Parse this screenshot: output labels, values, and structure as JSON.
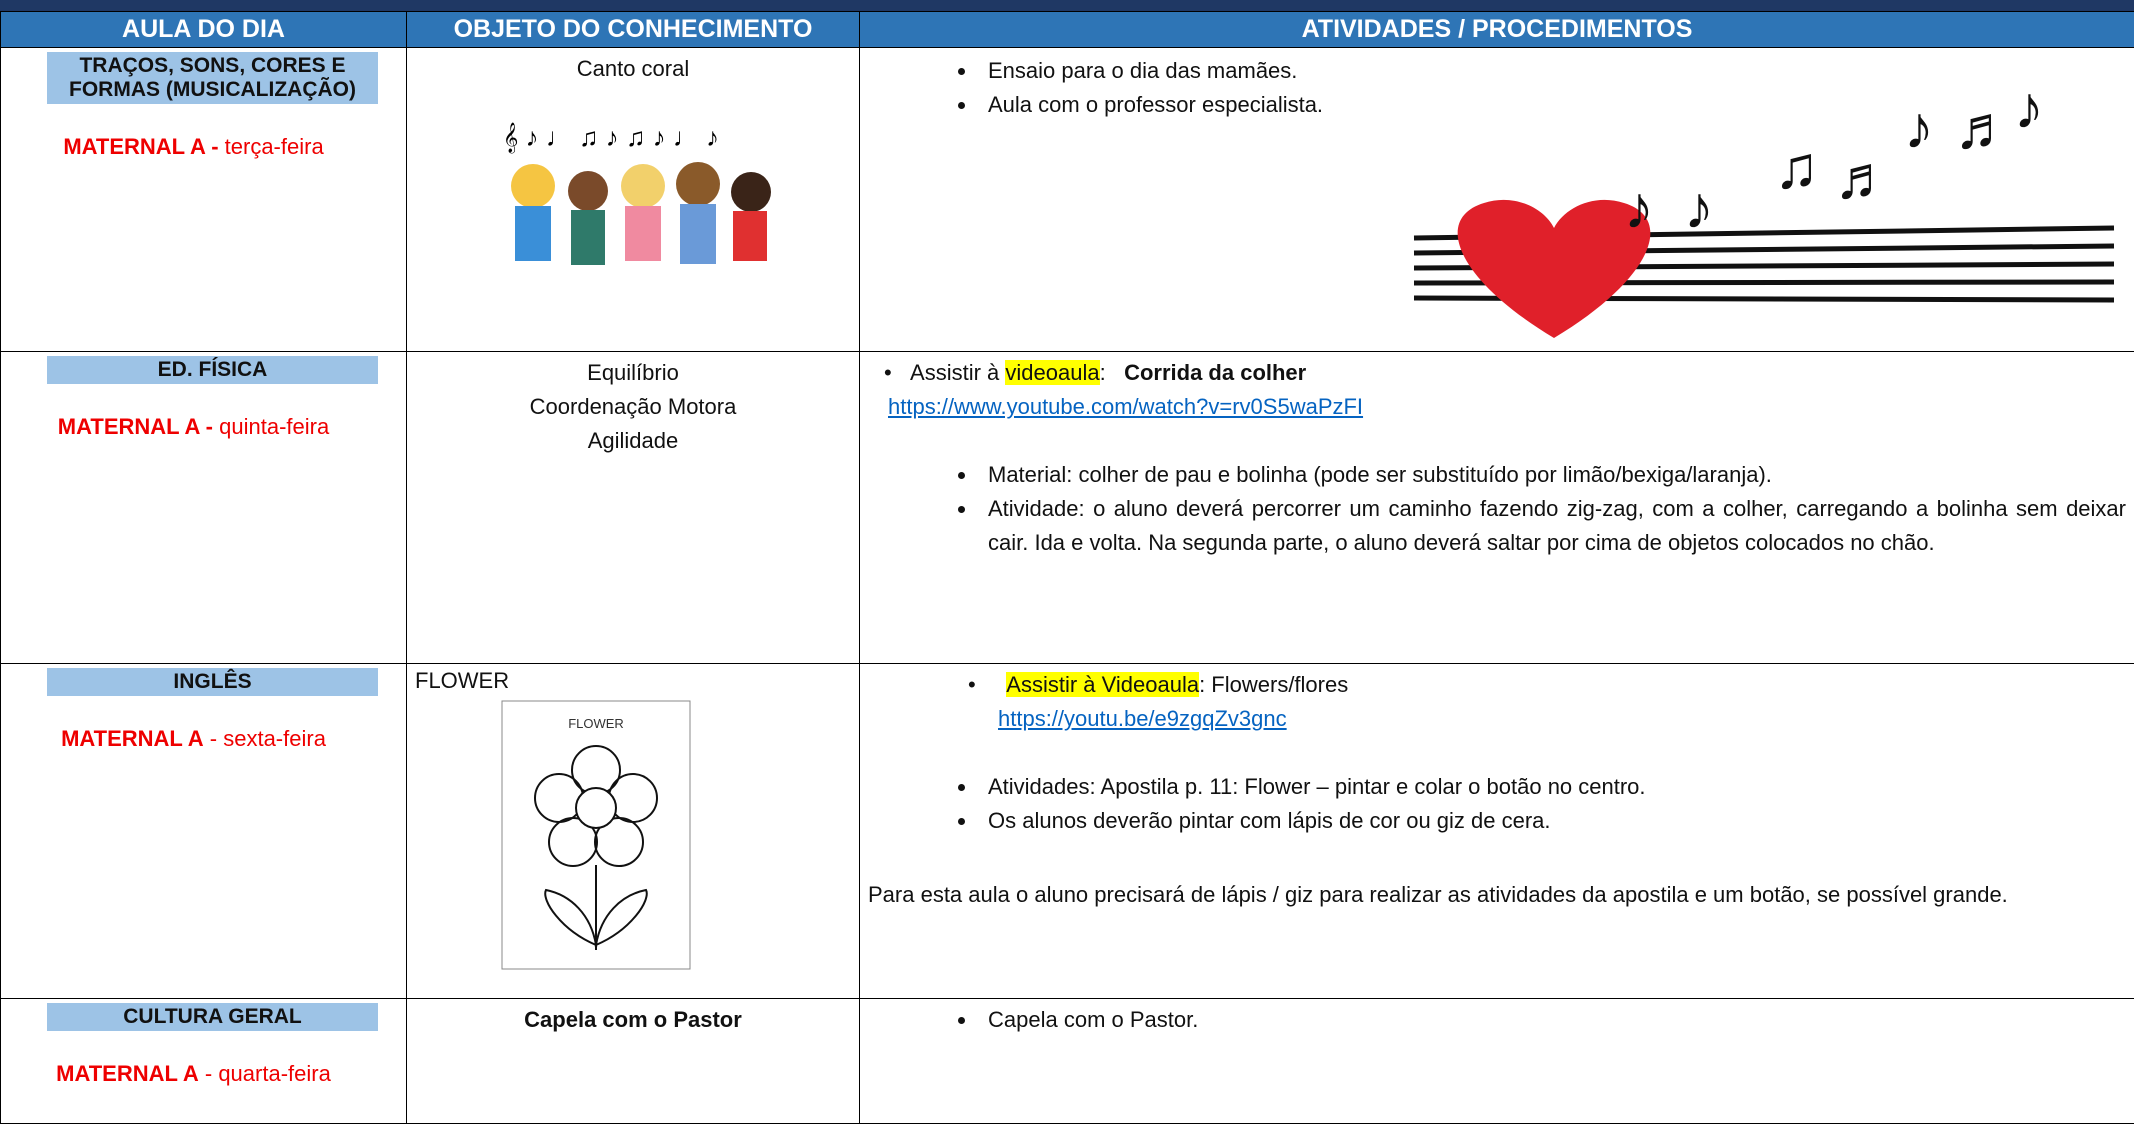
{
  "header": {
    "columns": [
      "AULA DO DIA",
      "OBJETO DO CONHECIMENTO",
      "ATIVIDADES / PROCEDIMENTOS"
    ]
  },
  "rows": [
    {
      "subject": "TRAÇOS, SONS, CORES E FORMAS (MUSICALIZAÇÃO)",
      "class": "MATERNAL A -",
      "day": "terça-feira",
      "objects": [
        "Canto coral"
      ],
      "bullets": [
        "Ensaio para o dia das mamães.",
        "Aula com o professor especialista."
      ]
    },
    {
      "subject": "ED. FÍSICA",
      "class": "MATERNAL A -",
      "day": "quinta-feira",
      "objects": [
        "Equilíbrio",
        "Coordenação Motora",
        "Agilidade"
      ],
      "intro": {
        "before": "Assistir à",
        "highlight": "videoaula",
        "colon": ":",
        "bold": "Corrida da colher"
      },
      "link": "https://www.youtube.com/watch?v=rv0S5waPzFI",
      "bullets": [
        "Material: colher de pau e bolinha (pode ser substituído por limão/bexiga/laranja).",
        "Atividade:  o aluno deverá percorrer um caminho fazendo zig-zag, com a colher, carregando a bolinha sem deixar cair. Ida e volta. Na segunda parte, o aluno deverá saltar por cima de objetos colocados no chão."
      ]
    },
    {
      "subject": "INGLÊS",
      "class": "MATERNAL A",
      "day": "- sexta-feira",
      "objects": [
        "FLOWER"
      ],
      "image_label": "FLOWER",
      "intro": {
        "highlight": "Assistir à Videoaula",
        "after": ":  Flowers/flores"
      },
      "link": "https://youtu.be/e9zgqZv3gnc",
      "bullets": [
        "Atividades:  Apostila p. 11: Flower – pintar e colar o botão no centro.",
        "Os alunos deverão pintar com lápis de cor ou giz de cera."
      ],
      "note": "Para esta aula o aluno precisará de lápis / giz para realizar as atividades da apostila e um botão, se  possível grande."
    },
    {
      "subject": "CULTURA GERAL",
      "class": "MATERNAL A",
      "day": "- quarta-feira",
      "objects": [
        "Capela com o Pastor"
      ],
      "bullets": [
        "Capela com o Pastor."
      ]
    }
  ]
}
